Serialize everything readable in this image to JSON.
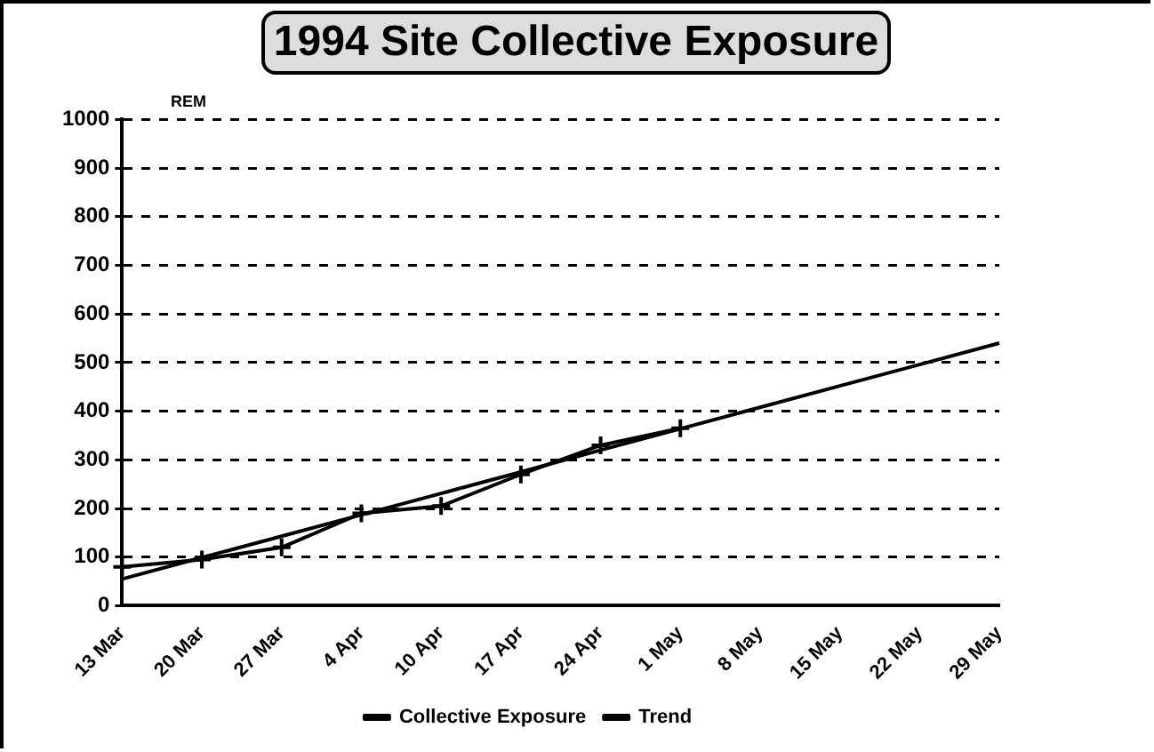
{
  "chart_data": {
    "type": "line",
    "title": "1994 Site Collective Exposure",
    "ylabel": "REM",
    "categories": [
      "13 Mar",
      "20 Mar",
      "27 Mar",
      "4 Apr",
      "10 Apr",
      "17 Apr",
      "24 Apr",
      "1 May",
      "8 May",
      "15 May",
      "22 May",
      "29 May"
    ],
    "series": [
      {
        "name": "Collective Exposure",
        "color": "#000000",
        "marker": "cross",
        "values": [
          80,
          95,
          120,
          190,
          205,
          270,
          330,
          365,
          null,
          null,
          null,
          null
        ]
      },
      {
        "name": "Trend",
        "color": "#000000",
        "marker": "none",
        "values": [
          55,
          99,
          143,
          187,
          231,
          275,
          320,
          364,
          408,
          452,
          496,
          540
        ]
      }
    ],
    "ylim": [
      0,
      1000
    ],
    "yticks": [
      0,
      100,
      200,
      300,
      400,
      500,
      600,
      700,
      800,
      900,
      1000
    ],
    "grid": "y",
    "line_style": "solid",
    "legend": "bottom"
  }
}
